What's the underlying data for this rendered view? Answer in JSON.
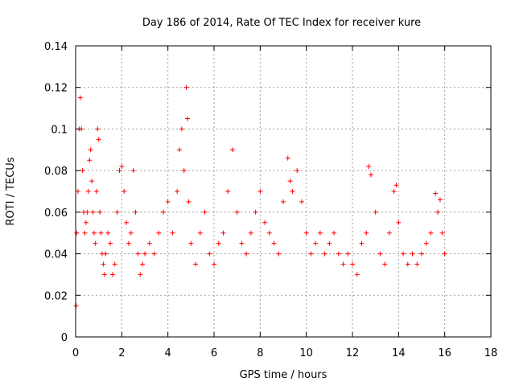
{
  "chart_data": {
    "type": "scatter",
    "title": "Day 186 of 2014, Rate Of TEC Index for receiver kure",
    "xlabel": "GPS time / hours",
    "ylabel": "ROTI / TECUs",
    "xlim": [
      0,
      18
    ],
    "ylim": [
      0,
      0.14
    ],
    "xticks": [
      "0",
      "2",
      "4",
      "6",
      "8",
      "10",
      "12",
      "14",
      "16",
      "18"
    ],
    "yticks": [
      "0",
      "0.02",
      "0.04",
      "0.06",
      "0.08",
      "0.1",
      "0.12",
      "0.14"
    ],
    "grid": true,
    "marker": "plus",
    "color": "#ff0000",
    "series": [
      {
        "x": [
          0.02,
          0.05,
          0.1,
          0.15,
          0.2,
          0.25,
          0.3,
          0.35,
          0.4,
          0.45,
          0.5,
          0.55,
          0.6,
          0.65,
          0.7,
          0.75,
          0.8,
          0.85,
          0.9,
          0.95,
          1.0,
          1.05,
          1.1,
          1.15,
          1.2,
          1.25,
          1.3,
          1.4,
          1.5,
          1.6,
          1.7,
          1.8,
          1.9,
          2.0,
          2.1,
          2.2,
          2.3,
          2.4,
          2.5,
          2.6,
          2.7,
          2.8,
          2.9,
          3.0,
          3.2,
          3.4,
          3.6,
          3.8,
          4.0,
          4.2,
          4.4,
          4.5,
          4.6,
          4.7,
          4.8,
          4.85,
          4.9,
          5.0,
          5.2,
          5.4,
          5.6,
          5.8,
          6.0,
          6.2,
          6.4,
          6.6,
          6.8,
          7.0,
          7.2,
          7.4,
          7.6,
          7.8,
          8.0,
          8.2,
          8.4,
          8.6,
          8.8,
          9.0,
          9.2,
          9.3,
          9.4,
          9.6,
          9.8,
          10.0,
          10.2,
          10.4,
          10.6,
          10.8,
          11.0,
          11.2,
          11.4,
          11.6,
          11.8,
          12.0,
          12.2,
          12.4,
          12.6,
          12.7,
          12.8,
          13.0,
          13.2,
          13.4,
          13.6,
          13.8,
          13.9,
          14.0,
          14.2,
          14.4,
          14.6,
          14.8,
          15.0,
          15.2,
          15.4,
          15.6,
          15.7,
          15.8,
          15.9,
          16.0
        ],
        "y": [
          0.015,
          0.05,
          0.07,
          0.1,
          0.115,
          0.1,
          0.08,
          0.06,
          0.05,
          0.055,
          0.06,
          0.07,
          0.085,
          0.09,
          0.075,
          0.06,
          0.05,
          0.045,
          0.07,
          0.1,
          0.095,
          0.06,
          0.05,
          0.04,
          0.035,
          0.03,
          0.04,
          0.05,
          0.045,
          0.03,
          0.035,
          0.06,
          0.08,
          0.082,
          0.07,
          0.055,
          0.045,
          0.05,
          0.08,
          0.06,
          0.04,
          0.03,
          0.035,
          0.04,
          0.045,
          0.04,
          0.05,
          0.06,
          0.065,
          0.05,
          0.07,
          0.09,
          0.1,
          0.08,
          0.12,
          0.105,
          0.065,
          0.045,
          0.035,
          0.05,
          0.06,
          0.04,
          0.035,
          0.045,
          0.05,
          0.07,
          0.09,
          0.06,
          0.045,
          0.04,
          0.05,
          0.06,
          0.07,
          0.055,
          0.05,
          0.045,
          0.04,
          0.065,
          0.086,
          0.075,
          0.07,
          0.08,
          0.065,
          0.05,
          0.04,
          0.045,
          0.05,
          0.04,
          0.045,
          0.05,
          0.04,
          0.035,
          0.04,
          0.035,
          0.03,
          0.045,
          0.05,
          0.082,
          0.078,
          0.06,
          0.04,
          0.035,
          0.05,
          0.07,
          0.073,
          0.055,
          0.04,
          0.035,
          0.04,
          0.035,
          0.04,
          0.045,
          0.05,
          0.069,
          0.06,
          0.066,
          0.05,
          0.04
        ]
      }
    ]
  }
}
